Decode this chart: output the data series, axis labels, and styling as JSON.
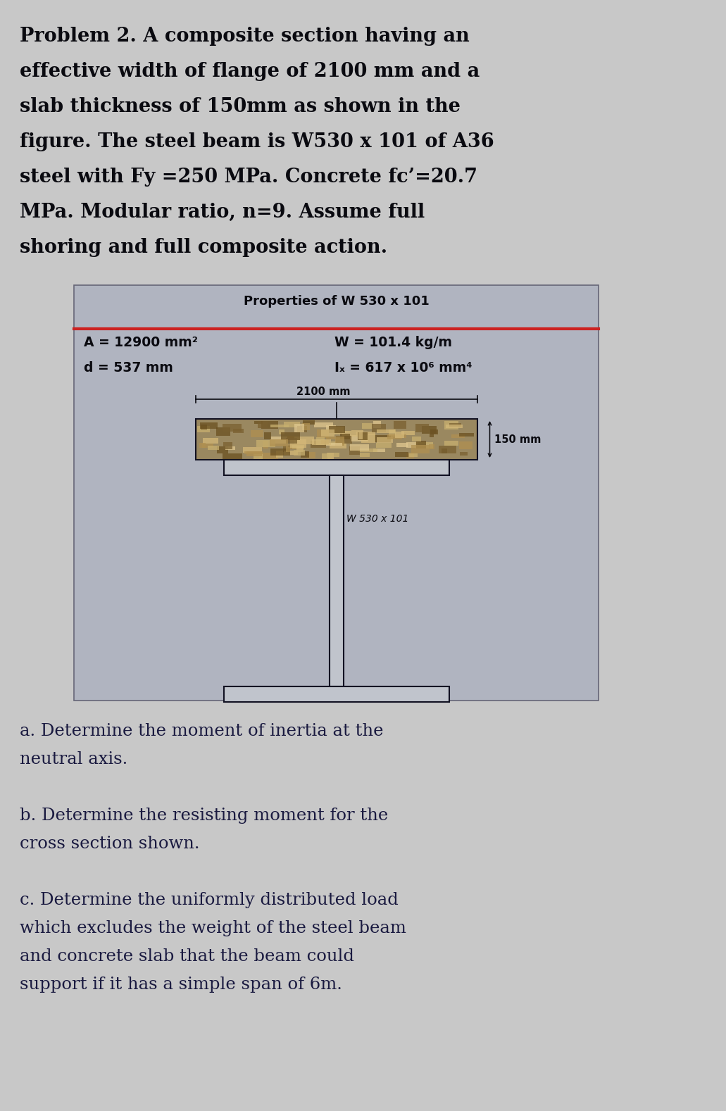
{
  "page_bg": "#c8c8c8",
  "box_bg": "#b0b4c0",
  "title_lines": [
    "Problem 2. A composite section having an",
    "effective width of flange of 2100 mm and a",
    "slab thickness of 150ømm as shown in the",
    "figure. The steel beam is W530 x 101 of A36",
    "steel with Fy =250 MPa. Concrete fc’=20.7",
    "MPa. Modular ratio, n=9. Assume full",
    "shoring and full composite action."
  ],
  "prop_title": "Properties of W 530 x 101",
  "prop_A": "A = 12900 mm²",
  "prop_W": "W = 101.4 kg/m",
  "prop_d": "d = 537 mm",
  "prop_Ix": "Iₓ = 617 x 10⁶ mm⁴",
  "dim_width": "2100 mm",
  "dim_height": "150 mm",
  "beam_label": "W 530 x 101",
  "question_a_lines": [
    "a. Determine the moment of inertia at the",
    "neutral axis."
  ],
  "question_b_lines": [
    "b. Determine the resisting moment for the",
    "cross section shown."
  ],
  "question_c_lines": [
    "c. Determine the uniformly distributed load",
    "which excludes the weight of the steel beam",
    "and concrete slab that the beam could",
    "support if it has a simple span of 6m."
  ],
  "red_line_color": "#cc2222",
  "beam_color": "#c0c4cc",
  "beam_outline": "#111122",
  "text_bold_color": "#0a0a10",
  "text_question_color": "#1a1a40",
  "slab_base_color": "#9a8860",
  "title_fontsize": 19.5,
  "prop_fontsize": 13.5,
  "question_fontsize": 17.5
}
